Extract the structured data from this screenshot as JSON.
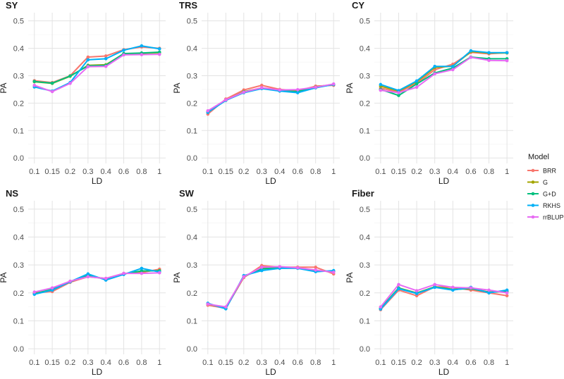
{
  "chart_data": {
    "type": "line",
    "x_categories": [
      "0.1",
      "0.15",
      "0.2",
      "0.3",
      "0.4",
      "0.6",
      "0.8",
      "1"
    ],
    "xlabel": "LD",
    "ylabel": "PA",
    "ylim": [
      -0.02,
      0.53
    ],
    "yticks": [
      "0.0",
      "0.1",
      "0.2",
      "0.3",
      "0.4",
      "0.5"
    ],
    "legend": {
      "title": "Model",
      "position": "right",
      "entries": [
        {
          "name": "BRR",
          "color": "#F8766D"
        },
        {
          "name": "G",
          "color": "#A3A500"
        },
        {
          "name": "G+D",
          "color": "#00BF7D"
        },
        {
          "name": "RKHS",
          "color": "#00B0F6"
        },
        {
          "name": "rrBLUP",
          "color": "#E76BF3"
        }
      ]
    },
    "panels": [
      {
        "title": "SY",
        "series": [
          {
            "name": "BRR",
            "values": [
              0.282,
              0.275,
              0.3,
              0.368,
              0.372,
              0.395,
              0.405,
              0.4
            ]
          },
          {
            "name": "G",
            "values": [
              0.278,
              0.272,
              0.298,
              0.338,
              0.34,
              0.38,
              0.382,
              0.384
            ]
          },
          {
            "name": "G+D",
            "values": [
              0.279,
              0.273,
              0.299,
              0.336,
              0.338,
              0.381,
              0.383,
              0.386
            ]
          },
          {
            "name": "RKHS",
            "values": [
              0.259,
              0.244,
              0.275,
              0.358,
              0.362,
              0.393,
              0.409,
              0.398
            ]
          },
          {
            "name": "rrBLUP",
            "values": [
              0.265,
              0.242,
              0.272,
              0.333,
              0.334,
              0.376,
              0.377,
              0.378
            ]
          }
        ]
      },
      {
        "title": "TRS",
        "series": [
          {
            "name": "BRR",
            "values": [
              0.16,
              0.215,
              0.248,
              0.265,
              0.25,
              0.245,
              0.262,
              0.265
            ]
          },
          {
            "name": "G",
            "values": [
              0.168,
              0.211,
              0.242,
              0.255,
              0.246,
              0.243,
              0.259,
              0.268
            ]
          },
          {
            "name": "G+D",
            "values": [
              0.167,
              0.21,
              0.241,
              0.254,
              0.245,
              0.242,
              0.258,
              0.268
            ]
          },
          {
            "name": "RKHS",
            "values": [
              0.166,
              0.21,
              0.238,
              0.253,
              0.244,
              0.238,
              0.256,
              0.268
            ]
          },
          {
            "name": "rrBLUP",
            "values": [
              0.172,
              0.212,
              0.24,
              0.256,
              0.248,
              0.249,
              0.258,
              0.27
            ]
          }
        ]
      },
      {
        "title": "CY",
        "series": [
          {
            "name": "BRR",
            "values": [
              0.255,
              0.24,
              0.272,
              0.322,
              0.342,
              0.385,
              0.38,
              0.384
            ]
          },
          {
            "name": "G",
            "values": [
              0.262,
              0.244,
              0.278,
              0.33,
              0.335,
              0.388,
              0.383,
              0.383
            ]
          },
          {
            "name": "G+D",
            "values": [
              0.25,
              0.228,
              0.27,
              0.31,
              0.328,
              0.368,
              0.362,
              0.362
            ]
          },
          {
            "name": "RKHS",
            "values": [
              0.268,
              0.246,
              0.281,
              0.334,
              0.334,
              0.391,
              0.384,
              0.384
            ]
          },
          {
            "name": "rrBLUP",
            "values": [
              0.247,
              0.238,
              0.258,
              0.307,
              0.322,
              0.367,
              0.356,
              0.355
            ]
          }
        ]
      },
      {
        "title": "NS",
        "series": [
          {
            "name": "BRR",
            "values": [
              0.2,
              0.205,
              0.238,
              0.258,
              0.252,
              0.27,
              0.273,
              0.285
            ]
          },
          {
            "name": "G",
            "values": [
              0.198,
              0.212,
              0.24,
              0.262,
              0.25,
              0.268,
              0.278,
              0.28
            ]
          },
          {
            "name": "G+D",
            "values": [
              0.196,
              0.213,
              0.24,
              0.263,
              0.249,
              0.268,
              0.279,
              0.279
            ]
          },
          {
            "name": "RKHS",
            "values": [
              0.195,
              0.21,
              0.24,
              0.268,
              0.246,
              0.266,
              0.288,
              0.275
            ]
          },
          {
            "name": "rrBLUP",
            "values": [
              0.203,
              0.218,
              0.242,
              0.258,
              0.252,
              0.27,
              0.27,
              0.272
            ]
          }
        ]
      },
      {
        "title": "SW",
        "series": [
          {
            "name": "BRR",
            "values": [
              0.156,
              0.145,
              0.255,
              0.298,
              0.292,
              0.292,
              0.292,
              0.268
            ]
          },
          {
            "name": "G",
            "values": [
              0.16,
              0.146,
              0.258,
              0.288,
              0.29,
              0.29,
              0.28,
              0.276
            ]
          },
          {
            "name": "G+D",
            "values": [
              0.161,
              0.146,
              0.259,
              0.286,
              0.29,
              0.289,
              0.279,
              0.277
            ]
          },
          {
            "name": "RKHS",
            "values": [
              0.163,
              0.143,
              0.262,
              0.28,
              0.288,
              0.288,
              0.276,
              0.28
            ]
          },
          {
            "name": "rrBLUP",
            "values": [
              0.16,
              0.15,
              0.258,
              0.292,
              0.294,
              0.29,
              0.282,
              0.274
            ]
          }
        ]
      },
      {
        "title": "Fiber",
        "series": [
          {
            "name": "BRR",
            "values": [
              0.14,
              0.21,
              0.19,
              0.222,
              0.22,
              0.21,
              0.2,
              0.19
            ]
          },
          {
            "name": "G",
            "values": [
              0.145,
              0.218,
              0.2,
              0.222,
              0.213,
              0.216,
              0.203,
              0.205
            ]
          },
          {
            "name": "G+D",
            "values": [
              0.144,
              0.217,
              0.199,
              0.221,
              0.212,
              0.216,
              0.202,
              0.206
            ]
          },
          {
            "name": "RKHS",
            "values": [
              0.142,
              0.215,
              0.198,
              0.22,
              0.21,
              0.22,
              0.2,
              0.21
            ]
          },
          {
            "name": "rrBLUP",
            "values": [
              0.15,
              0.23,
              0.208,
              0.23,
              0.22,
              0.218,
              0.21,
              0.2
            ]
          }
        ]
      }
    ]
  }
}
